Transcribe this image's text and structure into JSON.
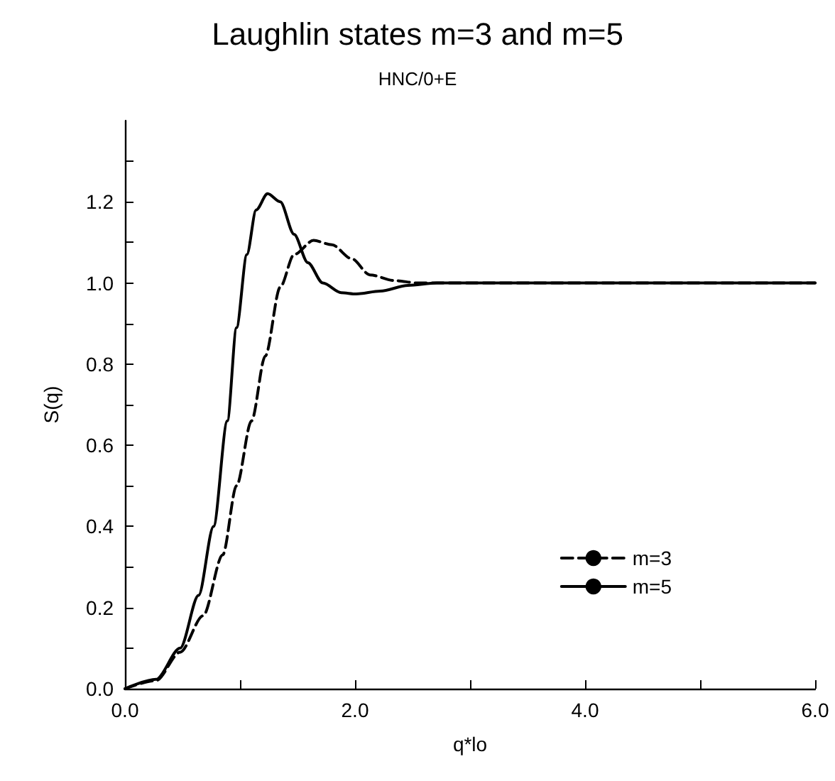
{
  "chart_data": {
    "type": "line",
    "title": "Laughlin states m=3 and m=5",
    "subtitle": "HNC/0+E",
    "xlabel": "q*lo",
    "ylabel": "S(q)",
    "xlim": [
      0,
      6
    ],
    "ylim": [
      0,
      1.4
    ],
    "xticks": [
      {
        "value": 0,
        "label": "0.0"
      },
      {
        "value": 1,
        "label": null
      },
      {
        "value": 2,
        "label": "2.0"
      },
      {
        "value": 3,
        "label": null
      },
      {
        "value": 4,
        "label": "4.0"
      },
      {
        "value": 5,
        "label": null
      },
      {
        "value": 6,
        "label": "6.0"
      }
    ],
    "yticks": [
      {
        "value": 0,
        "label": "0.0"
      },
      {
        "value": 0.1,
        "label": null
      },
      {
        "value": 0.2,
        "label": "0.2"
      },
      {
        "value": 0.3,
        "label": null
      },
      {
        "value": 0.4,
        "label": "0.4"
      },
      {
        "value": 0.5,
        "label": null
      },
      {
        "value": 0.6,
        "label": "0.6"
      },
      {
        "value": 0.7,
        "label": null
      },
      {
        "value": 0.8,
        "label": "0.8"
      },
      {
        "value": 0.9,
        "label": null
      },
      {
        "value": 1.0,
        "label": "1.0"
      },
      {
        "value": 1.1,
        "label": null
      },
      {
        "value": 1.2,
        "label": "1.2"
      },
      {
        "value": 1.3,
        "label": null
      }
    ],
    "grid": false,
    "legend": "bottom right",
    "marker": "none",
    "series": [
      {
        "name": "m=3",
        "color": "#000000",
        "line_style": "dashed",
        "x": [
          0,
          0.27,
          0.48,
          0.68,
          0.85,
          0.97,
          1.1,
          1.22,
          1.35,
          1.47,
          1.64,
          1.8,
          1.97,
          2.13,
          2.34,
          2.55,
          3,
          4,
          5,
          6
        ],
        "values": [
          0,
          0.02,
          0.09,
          0.18,
          0.33,
          0.5,
          0.66,
          0.82,
          0.99,
          1.07,
          1.105,
          1.094,
          1.06,
          1.02,
          1.006,
          1.0,
          1.0,
          1.0,
          1.0,
          1.0
        ]
      },
      {
        "name": "m=5",
        "color": "#000000",
        "line_style": "solid",
        "x": [
          0,
          0.27,
          0.48,
          0.64,
          0.77,
          0.89,
          0.97,
          1.06,
          1.14,
          1.24,
          1.35,
          1.47,
          1.59,
          1.72,
          1.88,
          2.01,
          2.22,
          2.46,
          2.71,
          3,
          4,
          5,
          6
        ],
        "values": [
          0,
          0.023,
          0.1,
          0.23,
          0.4,
          0.66,
          0.89,
          1.07,
          1.18,
          1.22,
          1.2,
          1.12,
          1.05,
          1.0,
          0.976,
          0.973,
          0.98,
          0.994,
          1.0,
          1.0,
          1.0,
          1.0,
          1.0
        ]
      }
    ]
  }
}
